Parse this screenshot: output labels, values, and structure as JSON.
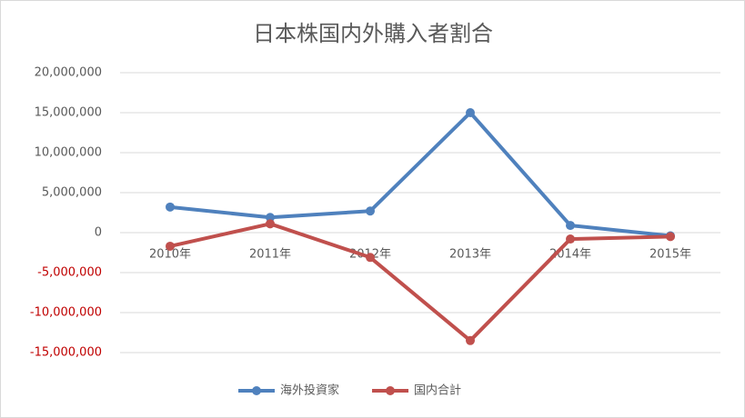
{
  "chart_data": {
    "type": "line",
    "title": "日本株国内外購入者割合",
    "categories": [
      "2010年",
      "2011年",
      "2012年",
      "2013年",
      "2014年",
      "2015年"
    ],
    "series": [
      {
        "name": "海外投資家",
        "color": "#4f81bd",
        "values": [
          3200000,
          1900000,
          2700000,
          15000000,
          900000,
          -400000
        ]
      },
      {
        "name": "国内合計",
        "color": "#c0504d",
        "values": [
          -1700000,
          1100000,
          -3100000,
          -13500000,
          -800000,
          -500000
        ]
      }
    ],
    "ylim": [
      -15000000,
      20000000
    ],
    "yticks": [
      {
        "value": -15000000,
        "label": "-15,000,000"
      },
      {
        "value": -10000000,
        "label": "-10,000,000"
      },
      {
        "value": -5000000,
        "label": "-5,000,000"
      },
      0,
      {
        "value": 5000000,
        "label": "5,000,000"
      },
      {
        "value": 10000000,
        "label": "10,000,000"
      },
      {
        "value": 15000000,
        "label": "15,000,000"
      },
      {
        "value": 20000000,
        "label": "20,000,000"
      }
    ],
    "negative_tick_color": "#c00000",
    "grid": true,
    "legend": "bottom"
  }
}
